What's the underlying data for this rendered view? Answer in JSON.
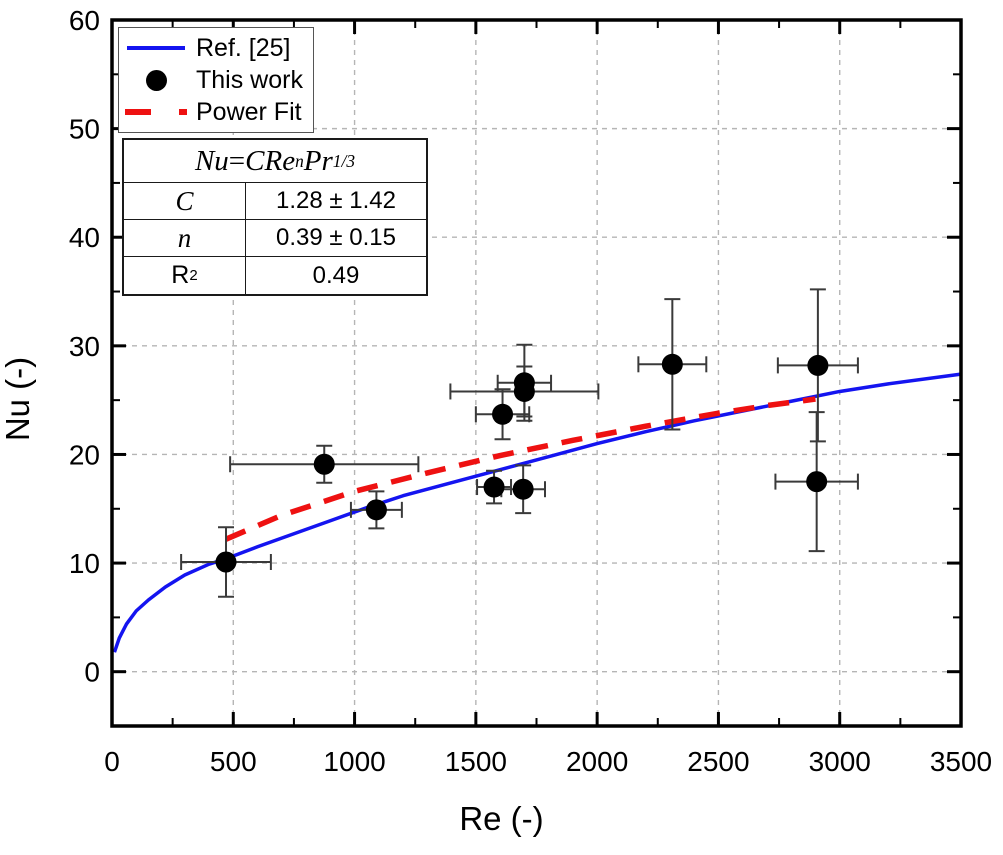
{
  "chart_data": {
    "type": "scatter",
    "title": "",
    "xlabel": "Re (-)",
    "ylabel": "Nu (-)",
    "xlim": [
      0,
      3500
    ],
    "ylim": [
      -5,
      60
    ],
    "x_major_ticks": [
      0,
      500,
      1000,
      1500,
      2000,
      2500,
      3000,
      3500
    ],
    "x_minor_ticks": [
      250,
      750,
      1250,
      1750,
      2250,
      2750,
      3250
    ],
    "y_major_ticks": [
      0,
      10,
      20,
      30,
      40,
      50,
      60
    ],
    "y_minor_ticks": [
      5,
      15,
      25,
      35,
      45,
      55
    ],
    "grid": {
      "x_lines": [
        500,
        1000,
        1500,
        2000,
        2500,
        3000
      ],
      "y_lines": [
        0,
        10,
        20,
        30,
        40,
        50
      ],
      "color": "#b5b5b5",
      "style": "dashed"
    },
    "legend": {
      "position": "top-left",
      "entries": [
        {
          "label": "Ref. [25]",
          "marker": "line",
          "color": "#1414f0"
        },
        {
          "label": "This work",
          "marker": "circle",
          "color": "#000000"
        },
        {
          "label": "Power Fit",
          "marker": "dash",
          "color": "#ee1111"
        }
      ]
    },
    "series": [
      {
        "name": "Ref. [25]",
        "type": "line",
        "color": "#1414f0",
        "stroke_width": 3.5,
        "points": [
          [
            10,
            1.8
          ],
          [
            30,
            3.1
          ],
          [
            60,
            4.4
          ],
          [
            100,
            5.6
          ],
          [
            150,
            6.6
          ],
          [
            220,
            7.8
          ],
          [
            300,
            8.9
          ],
          [
            400,
            9.9
          ],
          [
            470,
            10.4
          ],
          [
            600,
            11.5
          ],
          [
            750,
            12.7
          ],
          [
            900,
            13.9
          ],
          [
            1050,
            15.1
          ],
          [
            1200,
            16.2
          ],
          [
            1400,
            17.4
          ],
          [
            1600,
            18.6
          ],
          [
            1800,
            19.8
          ],
          [
            2000,
            21.0
          ],
          [
            2200,
            22.1
          ],
          [
            2400,
            23.1
          ],
          [
            2600,
            24.0
          ],
          [
            2800,
            24.9
          ],
          [
            3000,
            25.8
          ],
          [
            3200,
            26.5
          ],
          [
            3500,
            27.4
          ]
        ]
      },
      {
        "name": "Power Fit",
        "type": "dashed-line",
        "color": "#ee1111",
        "stroke_width": 5.5,
        "points": [
          [
            470,
            12.2
          ],
          [
            700,
            14.4
          ],
          [
            1000,
            16.6
          ],
          [
            1300,
            18.3
          ],
          [
            1600,
            19.9
          ],
          [
            1900,
            21.3
          ],
          [
            2200,
            22.6
          ],
          [
            2500,
            23.8
          ],
          [
            2700,
            24.5
          ],
          [
            2900,
            25.1
          ]
        ]
      },
      {
        "name": "This work",
        "type": "scatter",
        "color": "#000000",
        "marker_radius": 10.5,
        "points": [
          {
            "x": 470,
            "y": 10.1,
            "xerr": 185,
            "yerr": 3.2
          },
          {
            "x": 875,
            "y": 19.1,
            "xerr": 388,
            "yerr": 1.7
          },
          {
            "x": 1090,
            "y": 14.9,
            "xerr": 105,
            "yerr": 1.7
          },
          {
            "x": 1575,
            "y": 17.0,
            "xerr": 70,
            "yerr": 1.5
          },
          {
            "x": 1610,
            "y": 23.7,
            "xerr": 110,
            "yerr": 2.3
          },
          {
            "x": 1695,
            "y": 16.8,
            "xerr": 90,
            "yerr": 2.2
          },
          {
            "x": 1700,
            "y": 26.6,
            "xerr": 110,
            "yerr": 3.5
          },
          {
            "x": 1700,
            "y": 25.8,
            "xerr": 305,
            "yerr": 2.3
          },
          {
            "x": 2310,
            "y": 28.3,
            "xerr": 140,
            "yerr": 6.0
          },
          {
            "x": 2910,
            "y": 28.2,
            "xerr": 165,
            "yerr": 7.0
          },
          {
            "x": 2905,
            "y": 17.5,
            "xerr": 170,
            "yerr": 6.4
          }
        ]
      }
    ],
    "fit_table": {
      "formula": {
        "lhs": "Nu",
        "eq": " = ",
        "term1": "CRe",
        "sup1": "n",
        "term2": "Pr",
        "sup2": "1/3"
      },
      "rows": [
        {
          "param": "C",
          "param_sup": "",
          "value": "1.28 ± 1.42"
        },
        {
          "param": "n",
          "param_sup": "",
          "value": "0.39 ± 0.15"
        },
        {
          "param": "R",
          "param_sup": "2",
          "value": "0.49"
        }
      ]
    },
    "style": {
      "frame_color": "#000000",
      "errorbar_color": "#3a3a3a",
      "background": "#ffffff"
    }
  }
}
